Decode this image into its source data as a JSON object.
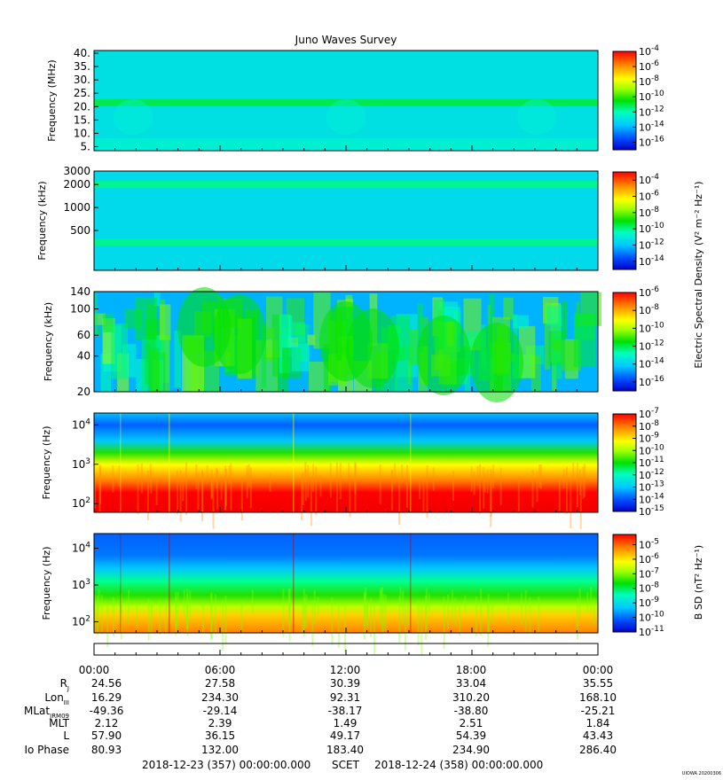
{
  "title": "Juno Waves Survey",
  "footer": {
    "start_label": "2018-12-23 (357) 00:00:00.000",
    "center_label": "SCET",
    "end_label": "2018-12-24 (358) 00:00:00.000",
    "version": "UIOWA 20200306"
  },
  "colorbar_labels": {
    "esd": "Electric Spectral Density (V² m⁻² Hz⁻¹)",
    "bsd": "B SD (nT² Hz⁻¹)"
  },
  "ephemeris": {
    "times": [
      "00:00",
      "06:00",
      "12:00",
      "18:00",
      "00:00"
    ],
    "rows": [
      {
        "label": "Rj",
        "values": [
          "24.56",
          "27.58",
          "30.39",
          "33.04",
          "35.55"
        ]
      },
      {
        "label": "LonIII",
        "values": [
          "16.29",
          "234.30",
          "92.31",
          "310.20",
          "168.10"
        ]
      },
      {
        "label": "MLatJRM09",
        "values": [
          "-49.36",
          "-29.14",
          "-38.17",
          "-38.80",
          "-25.21"
        ]
      },
      {
        "label": "MLT",
        "values": [
          "2.12",
          "2.39",
          "1.49",
          "2.51",
          "1.84"
        ]
      },
      {
        "label": "L",
        "values": [
          "57.90",
          "36.15",
          "49.17",
          "54.39",
          "43.43"
        ]
      },
      {
        "label": "Io Phase",
        "values": [
          "80.93",
          "132.00",
          "183.40",
          "234.90",
          "286.40"
        ]
      }
    ]
  },
  "chart_data": [
    {
      "type": "heatmap",
      "panel": 1,
      "ylabel": "Frequency (MHz)",
      "yscale": "linear",
      "ylim": [
        3.5,
        41
      ],
      "yticks": [
        "40.",
        "35.",
        "30.",
        "25.",
        "20.",
        "15.",
        "10.",
        "5."
      ],
      "ytick_values": [
        40,
        35,
        30,
        25,
        20,
        15,
        10,
        5
      ],
      "colorbar": {
        "scale": "log",
        "range": [
          -17,
          -4
        ],
        "tick_exponents": [
          -4,
          -6,
          -8,
          -10,
          -12,
          -14,
          -16
        ]
      },
      "features": [
        {
          "kind": "band",
          "frequency": 21.5,
          "level_exponent": -11
        }
      ],
      "background_level_exponent": -13
    },
    {
      "type": "heatmap",
      "panel": 2,
      "ylabel": "Frequency (kHz)",
      "yscale": "log",
      "ylim": [
        150,
        3000
      ],
      "yticks": [
        "3000",
        "2000",
        "1000",
        "500"
      ],
      "ytick_values": [
        3000,
        2000,
        1000,
        500
      ],
      "colorbar": {
        "scale": "log",
        "range": [
          -15,
          -3
        ],
        "tick_exponents": [
          -4,
          -6,
          -8,
          -10,
          -12,
          -14
        ]
      },
      "features": [
        {
          "kind": "band",
          "frequency": 2000,
          "level_exponent": -10
        },
        {
          "kind": "band",
          "frequency": 350,
          "level_exponent": -10
        }
      ],
      "background_level_exponent": -11.5
    },
    {
      "type": "heatmap",
      "panel": 3,
      "ylabel": "Frequency (kHz)",
      "yscale": "log",
      "ylim": [
        20,
        140
      ],
      "yticks": [
        "140",
        "100",
        "60",
        "40",
        "20"
      ],
      "ytick_values": [
        140,
        100,
        60,
        40,
        20
      ],
      "colorbar": {
        "scale": "log",
        "range": [
          -17,
          -6
        ],
        "tick_exponents": [
          -6,
          -8,
          -10,
          -12,
          -14,
          -16
        ]
      },
      "background_level_exponent": -14.5
    },
    {
      "type": "heatmap",
      "panel": 4,
      "ylabel": "Frequency (Hz)",
      "yscale": "log",
      "ylim": [
        60,
        20000
      ],
      "yticks": [
        "10^4",
        "10^3",
        "10^2"
      ],
      "ytick_values": [
        10000,
        1000,
        100
      ],
      "colorbar": {
        "scale": "log",
        "range": [
          -15,
          -7
        ],
        "tick_exponents": [
          -7,
          -8,
          -9,
          -10,
          -11,
          -12,
          -13,
          -14,
          -15
        ]
      },
      "profile": [
        {
          "frequency": 20000,
          "level_exponent": -13
        },
        {
          "frequency": 3000,
          "level_exponent": -12.5
        },
        {
          "frequency": 1500,
          "level_exponent": -11
        },
        {
          "frequency": 700,
          "level_exponent": -9
        },
        {
          "frequency": 300,
          "level_exponent": -8
        },
        {
          "frequency": 150,
          "level_exponent": -7.2
        },
        {
          "frequency": 60,
          "level_exponent": -7
        }
      ]
    },
    {
      "type": "heatmap",
      "panel": 5,
      "ylabel": "Frequency (Hz)",
      "yscale": "log",
      "ylim": [
        50,
        25000
      ],
      "yticks": [
        "10^4",
        "10^3",
        "10^2"
      ],
      "ytick_values": [
        10000,
        1000,
        100
      ],
      "colorbar": {
        "scale": "log",
        "range": [
          -11,
          -4.3
        ],
        "tick_exponents": [
          -5,
          -6,
          -7,
          -8,
          -9,
          -10,
          -11
        ]
      },
      "profile": [
        {
          "frequency": 25000,
          "level_exponent": -10.5
        },
        {
          "frequency": 5000,
          "level_exponent": -10
        },
        {
          "frequency": 1500,
          "level_exponent": -9
        },
        {
          "frequency": 500,
          "level_exponent": -7.7
        },
        {
          "frequency": 180,
          "level_exponent": -6.5
        },
        {
          "frequency": 50,
          "level_exponent": -6
        }
      ]
    }
  ]
}
